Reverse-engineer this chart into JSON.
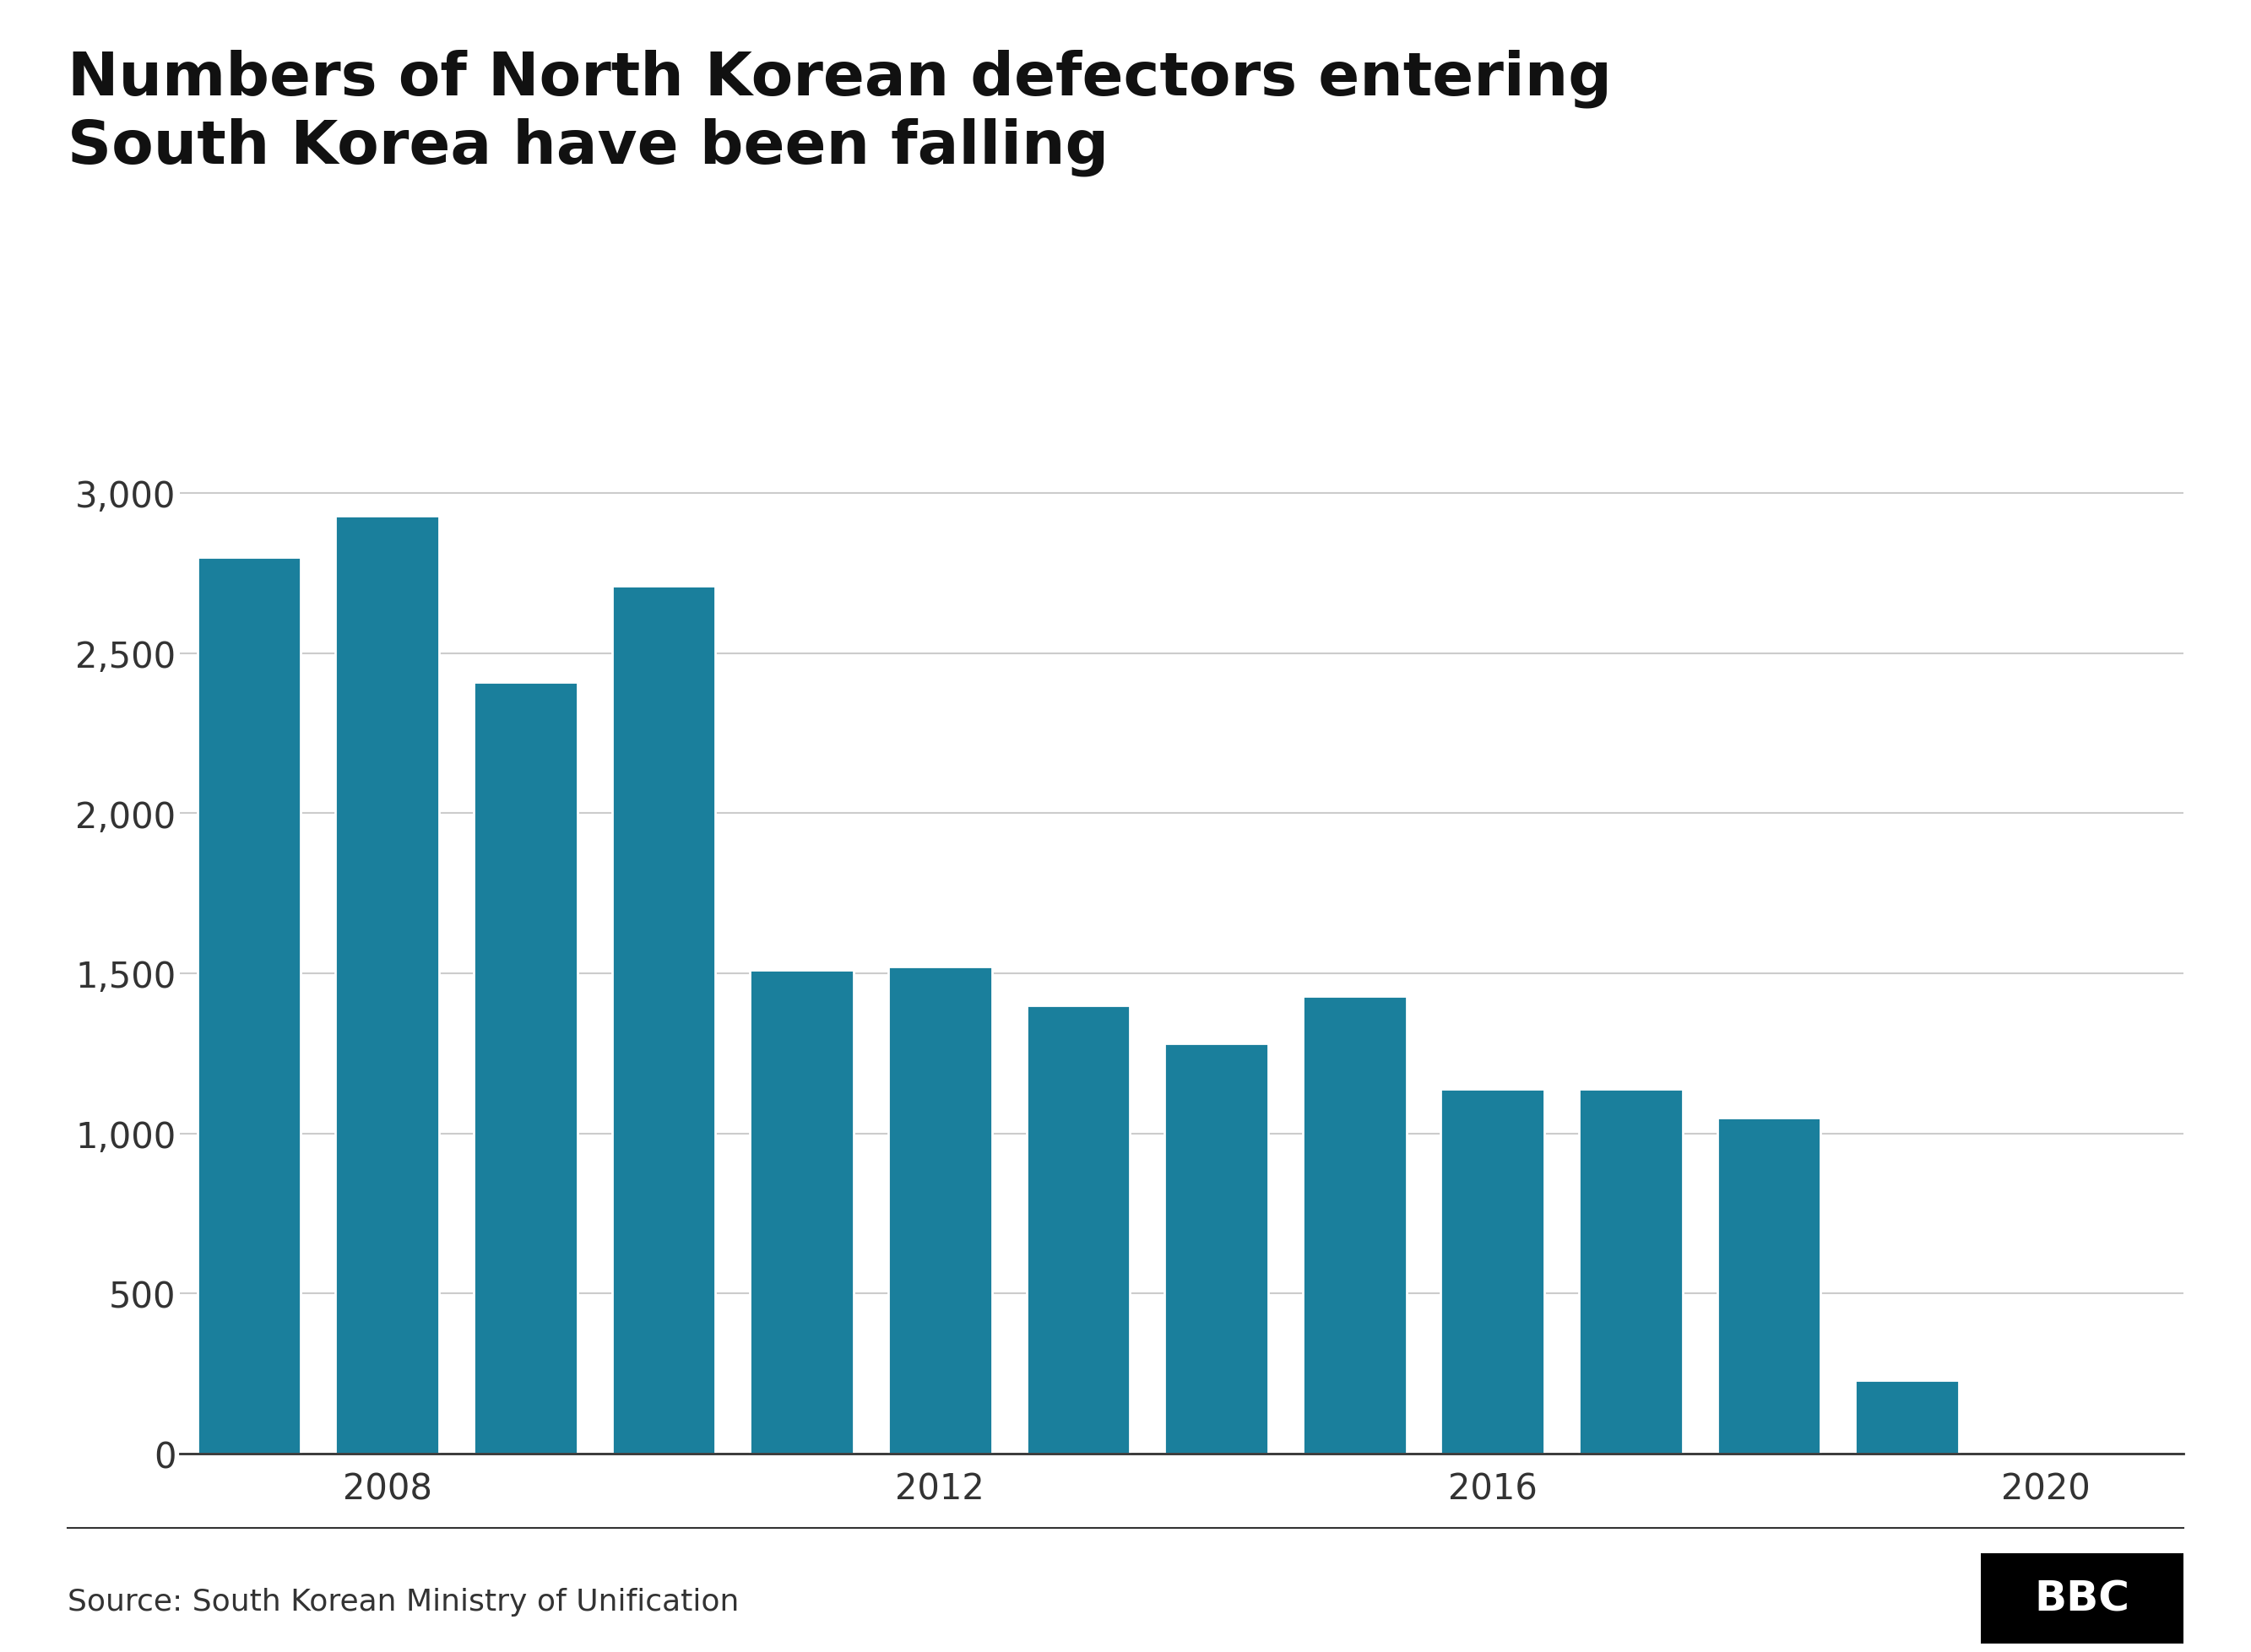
{
  "title": "Numbers of North Korean defectors entering\nSouth Korea have been falling",
  "years": [
    2007,
    2008,
    2009,
    2010,
    2011,
    2012,
    2013,
    2014,
    2015,
    2016,
    2017,
    2018,
    2019,
    2020
  ],
  "values": [
    2800,
    2930,
    2410,
    2710,
    1510,
    1520,
    1400,
    1280,
    1430,
    1140,
    1140,
    1050,
    230,
    0
  ],
  "bar_color": "#1a7f9c",
  "background_color": "#ffffff",
  "yticks": [
    0,
    500,
    1000,
    1500,
    2000,
    2500,
    3000
  ],
  "xtick_labels": [
    "2008",
    "2012",
    "2016",
    "2020"
  ],
  "xtick_positions": [
    2008,
    2012,
    2016,
    2020
  ],
  "ylim": [
    0,
    3200
  ],
  "source_text": "Source: South Korean Ministry of Unification",
  "title_fontsize": 52,
  "tick_fontsize": 30,
  "source_fontsize": 26,
  "grid_color": "#cccccc",
  "axis_color": "#333333",
  "footer_bg": "#ffffff",
  "bbc_box_color": "#000000",
  "bbc_text_color": "#ffffff"
}
